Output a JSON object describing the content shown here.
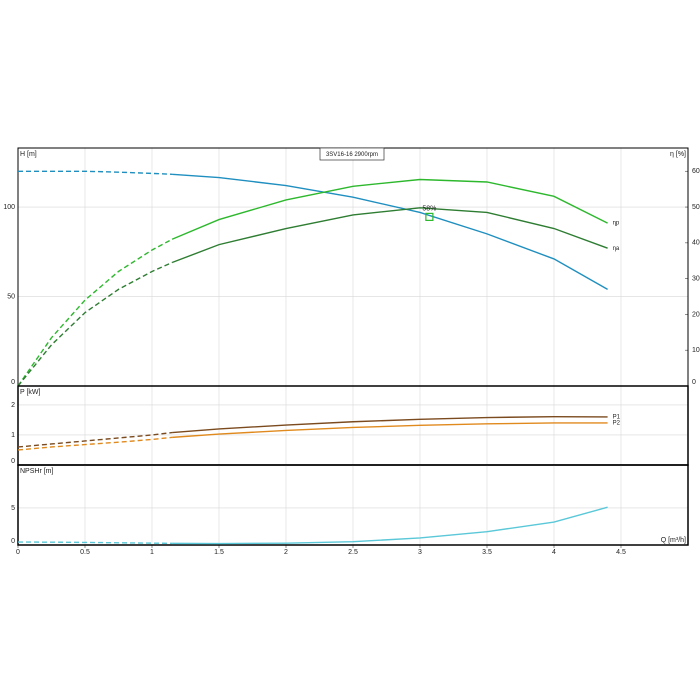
{
  "chart_data": [
    {
      "type": "line",
      "title": "3SV16-16 2900rpm",
      "y_label": "H [m]",
      "y2_label": "η [%]",
      "x": [
        0,
        0.25,
        0.5,
        0.75,
        1,
        1.15,
        1.5,
        2,
        2.5,
        3,
        3.5,
        4,
        4.4
      ],
      "xlim": [
        0,
        5
      ],
      "ylim": [
        0,
        133
      ],
      "yticks": [
        0,
        50,
        100
      ],
      "y2lim": [
        0,
        66.5
      ],
      "y2ticks": [
        0,
        10,
        20,
        30,
        40,
        50,
        60
      ],
      "dashed_below_x": 1.15,
      "grid": true,
      "series": [
        {
          "color": "#1f8fbf",
          "values": [
            120,
            120,
            120,
            119.5,
            118.8,
            118.3,
            116.5,
            112,
            105.5,
            97,
            85,
            71,
            54
          ]
        },
        {
          "name": "ηp",
          "color": "#2db82d",
          "axis": "y2",
          "values": [
            0,
            13.5,
            24,
            32,
            38,
            41,
            46.5,
            52,
            55.8,
            57.7,
            57,
            53,
            45.5
          ]
        },
        {
          "name": "ηa",
          "color": "#2e7d32",
          "axis": "y2",
          "values": [
            0,
            11.5,
            20.5,
            27,
            32,
            34.5,
            39.5,
            44,
            47.8,
            49.8,
            48.5,
            44,
            38.5
          ]
        }
      ],
      "annotation": {
        "text": "58%",
        "x": 3.07,
        "y": 94.5
      }
    },
    {
      "type": "line",
      "y_label": "P [kW]",
      "x": [
        0,
        0.25,
        0.5,
        0.75,
        1,
        1.15,
        1.5,
        2,
        2.5,
        3,
        3.5,
        4,
        4.4
      ],
      "xlim": [
        0,
        5
      ],
      "ylim": [
        0,
        2.63
      ],
      "yticks": [
        0,
        1,
        2
      ],
      "dashed_below_x": 1.15,
      "grid": true,
      "series": [
        {
          "name": "P1",
          "color": "#7b4a1e",
          "values": [
            0.6,
            0.7,
            0.8,
            0.9,
            1.0,
            1.08,
            1.2,
            1.33,
            1.44,
            1.52,
            1.58,
            1.61,
            1.6
          ]
        },
        {
          "name": "P2",
          "color": "#e08a1e",
          "values": [
            0.5,
            0.6,
            0.68,
            0.76,
            0.85,
            0.92,
            1.03,
            1.15,
            1.25,
            1.32,
            1.37,
            1.4,
            1.4
          ]
        }
      ]
    },
    {
      "type": "line",
      "y_label": "NPSHr [m]",
      "x_label": "Q [m³/h]",
      "x": [
        0,
        0.25,
        0.5,
        0.75,
        1,
        1.15,
        1.5,
        2,
        2.5,
        3,
        3.5,
        4,
        4.4
      ],
      "xlim": [
        0,
        5
      ],
      "xticks": [
        0,
        0.5,
        1,
        1.5,
        2,
        2.5,
        3,
        3.5,
        4,
        4.5
      ],
      "ylim": [
        0,
        10.8
      ],
      "yticks": [
        0,
        5
      ],
      "dashed_below_x": 1.15,
      "grid": true,
      "series": [
        {
          "color": "#5ac8d8",
          "values": [
            0.4,
            0.38,
            0.35,
            0.3,
            0.25,
            0.22,
            0.2,
            0.25,
            0.45,
            0.95,
            1.8,
            3.1,
            5.1
          ]
        }
      ]
    }
  ]
}
